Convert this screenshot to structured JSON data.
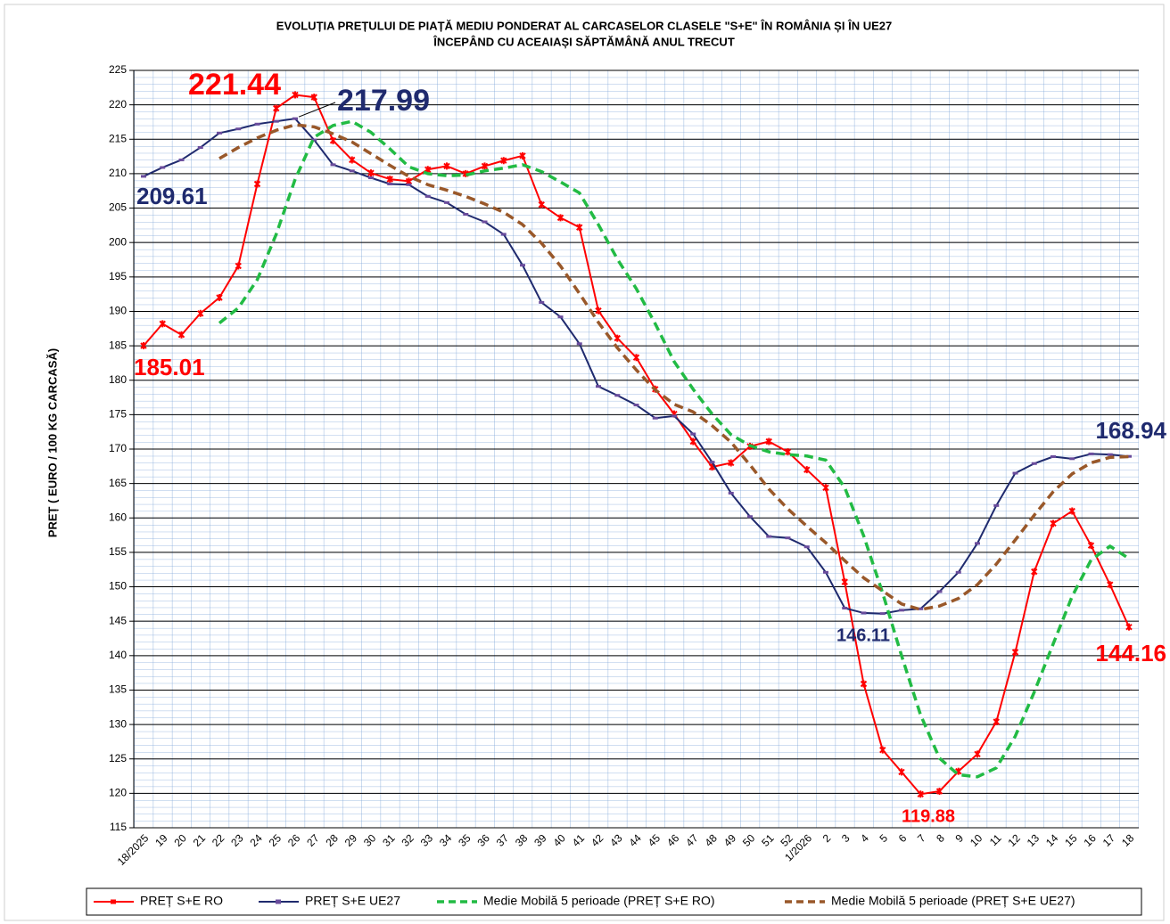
{
  "chart_data": {
    "type": "line",
    "title": "EVOLUȚIA PREȚULUI DE PIAȚĂ MEDIU PONDERAT AL CARCASELOR  CLASELE \"S+E\" ÎN ROMÂNIA  ȘI ÎN UE27",
    "subtitle": "ÎNCEPÂND  CU ACEAIAȘI  SĂPTĂMÂNĂ  ANUL TRECUT",
    "y_label": "PREȚ ( EURO / 100 KG CARCASĂ)",
    "categories": [
      "18/2025",
      "19",
      "20",
      "21",
      "22",
      "23",
      "24",
      "25",
      "26",
      "27",
      "28",
      "29",
      "30",
      "31",
      "32",
      "33",
      "34",
      "35",
      "36",
      "37",
      "38",
      "39",
      "40",
      "41",
      "42",
      "43",
      "44",
      "45",
      "46",
      "47",
      "48",
      "49",
      "50",
      "51",
      "52",
      "1/2026",
      "2",
      "3",
      "4",
      "5",
      "6",
      "7",
      "8",
      "9",
      "10",
      "11",
      "12",
      "13",
      "14",
      "15",
      "16",
      "17",
      "18"
    ],
    "ylim": [
      115,
      225
    ],
    "yticks": [
      115,
      120,
      125,
      130,
      135,
      140,
      145,
      150,
      155,
      160,
      165,
      170,
      175,
      180,
      185,
      190,
      195,
      200,
      205,
      210,
      215,
      220,
      225
    ],
    "grid": true,
    "series": [
      {
        "name": "PREȚ S+E RO",
        "color": "#ff0000",
        "dash": false,
        "values": [
          185.01,
          188.2,
          186.6,
          189.7,
          192,
          196.6,
          208.5,
          219.5,
          221.44,
          221.1,
          214.8,
          212,
          210.1,
          209.2,
          208.9,
          210.6,
          211.1,
          210,
          211.1,
          211.9,
          212.6,
          205.5,
          203.6,
          202.2,
          190.1,
          186.1,
          183.3,
          178.7,
          175.1,
          171.1,
          167.4,
          168,
          170.4,
          171.1,
          169.6,
          167,
          164.4,
          150.7,
          135.9,
          126.3,
          123.1,
          119.88,
          120.3,
          123.2,
          125.7,
          130.4,
          140.5,
          152.2,
          159.2,
          161,
          156,
          150.3,
          144.16
        ],
        "value_labels": [
          "185.01",
          null,
          null,
          null,
          null,
          null,
          null,
          null,
          "221.44",
          null,
          null,
          null,
          null,
          null,
          null,
          null,
          null,
          null,
          null,
          null,
          null,
          null,
          null,
          null,
          null,
          null,
          null,
          null,
          null,
          null,
          null,
          null,
          null,
          null,
          null,
          null,
          null,
          null,
          null,
          null,
          null,
          "119.88",
          null,
          null,
          null,
          null,
          null,
          null,
          null,
          null,
          null,
          null,
          "144.16"
        ]
      },
      {
        "name": "PREȚ S+E UE27",
        "color": "#1f2a6e",
        "dash": false,
        "values": [
          209.61,
          210.9,
          212,
          213.8,
          215.9,
          216.5,
          217.2,
          217.6,
          217.99,
          214.9,
          211.3,
          210.4,
          209.4,
          208.5,
          208.4,
          206.7,
          205.8,
          204.1,
          203,
          201.2,
          196.7,
          191.3,
          189.2,
          185.3,
          179.1,
          177.8,
          176.4,
          174.5,
          174.8,
          172.2,
          168.1,
          163.6,
          160.2,
          157.3,
          157.1,
          155.8,
          152.1,
          146.9,
          146.2,
          146.11,
          146.6,
          146.8,
          149.3,
          152.1,
          156.3,
          161.8,
          166.5,
          167.9,
          168.9,
          168.6,
          169.3,
          169.2,
          168.94
        ],
        "value_labels": [
          "209.61",
          null,
          null,
          null,
          null,
          null,
          null,
          null,
          "217.99",
          null,
          null,
          null,
          null,
          null,
          null,
          null,
          null,
          null,
          null,
          null,
          null,
          null,
          null,
          null,
          null,
          null,
          null,
          null,
          null,
          null,
          null,
          null,
          null,
          null,
          null,
          null,
          null,
          null,
          null,
          "146.11",
          null,
          null,
          null,
          null,
          null,
          null,
          null,
          null,
          null,
          null,
          null,
          null,
          "168.94"
        ]
      },
      {
        "name": "Medie Mobilă 5 perioade  (PREȚ S+E RO)",
        "color": "#22bb44",
        "dash": true,
        "values": [
          null,
          null,
          null,
          null,
          188.3,
          190.5,
          194.6,
          201.2,
          209.2,
          215.3,
          217,
          217.6,
          216,
          213.6,
          211,
          210,
          209.7,
          209.8,
          210.4,
          210.8,
          211.3,
          210.3,
          208.8,
          207.2,
          202.6,
          197.6,
          193.3,
          188.2,
          182.7,
          178.7,
          175.1,
          172.1,
          170.5,
          169.6,
          169.2,
          169,
          168.4,
          164.4,
          157.4,
          149.1,
          140,
          131.4,
          125.1,
          122.7,
          122.4,
          123.7,
          128.3,
          134.7,
          141.7,
          148.6,
          153.9,
          155.9,
          154.1
        ]
      },
      {
        "name": "Medie Mobilă 5 perioade  (PREȚ S+E UE27)",
        "color": "#99582a",
        "dash": true,
        "values": [
          null,
          null,
          null,
          null,
          212.2,
          213.8,
          215.2,
          216.3,
          217.1,
          216.8,
          215.8,
          214.6,
          212.9,
          211.2,
          209.6,
          208.4,
          207.6,
          206.7,
          205.6,
          204.4,
          202.6,
          199.9,
          196.6,
          192.6,
          188.4,
          184.7,
          181.5,
          178.6,
          176.5,
          175.4,
          173.4,
          171,
          167.7,
          164.2,
          161.3,
          158.8,
          156.4,
          153.8,
          151.3,
          149.4,
          147.5,
          146.7,
          147.2,
          148.3,
          150.3,
          153.3,
          156.8,
          160.4,
          163.8,
          166.4,
          168,
          168.8,
          168.9
        ]
      }
    ]
  }
}
